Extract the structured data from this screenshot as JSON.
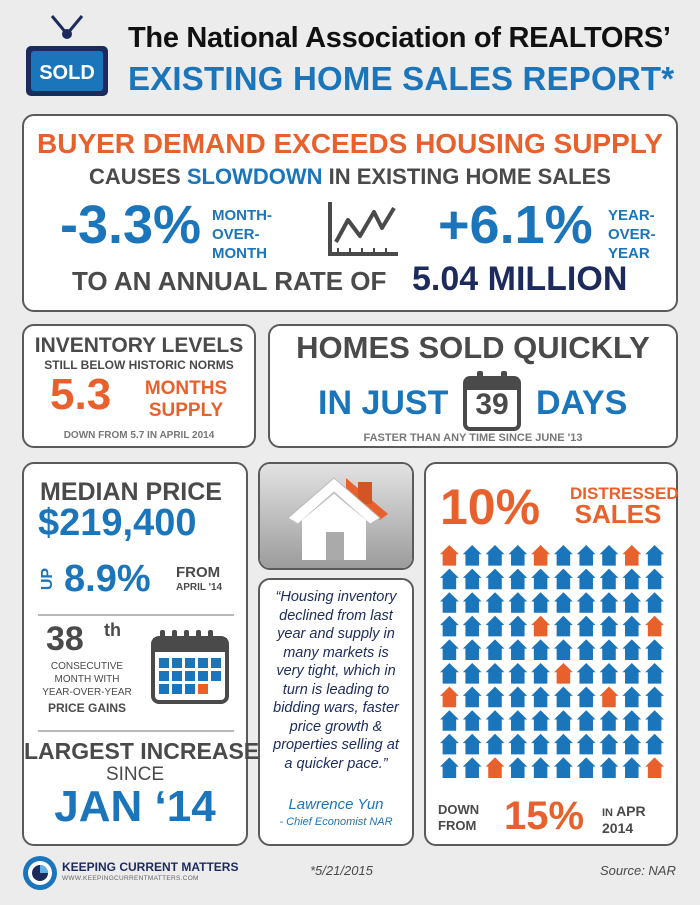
{
  "header": {
    "sign_text": "SOLD",
    "line1": "The National Association of REALTORS’",
    "line2": "EXISTING HOME SALES REPORT*"
  },
  "demand": {
    "title": "BUYER DEMAND EXCEEDS HOUSING SUPPLY",
    "sub_a": "CAUSES ",
    "sub_b": "SLOWDOWN",
    "sub_c": " IN EXISTING HOME SALES",
    "mom_value": "-3.3%",
    "mom_label1": "MONTH-",
    "mom_label2": "OVER-",
    "mom_label3": "MONTH",
    "yoy_value": "+6.1%",
    "yoy_label1": "YEAR-",
    "yoy_label2": "OVER-",
    "yoy_label3": "YEAR",
    "rate_text": "TO AN ANNUAL RATE OF",
    "rate_value": "5.04 MILLION",
    "chart_icon": "line-chart-icon"
  },
  "inventory": {
    "title": "INVENTORY LEVELS",
    "subtitle": "STILL BELOW HISTORIC NORMS",
    "value": "5.3",
    "label1": "MONTHS",
    "label2": "SUPPLY",
    "down": "DOWN FROM 5.7 IN APRIL 2014"
  },
  "sold_quickly": {
    "title": "HOMES SOLD QUICKLY",
    "in_just": "IN JUST",
    "days_value": "39",
    "days": "DAYS",
    "faster": "FASTER THAN ANY TIME SINCE JUNE '13",
    "calendar_icon": "calendar-icon"
  },
  "median": {
    "title": "MEDIAN PRICE",
    "price": "$219,400",
    "up": "UP",
    "pct": "8.9%",
    "from": "FROM",
    "from_date": "APRIL '14",
    "consec_num": "38",
    "consec_suffix": "th",
    "consec_l1": "CONSECUTIVE",
    "consec_l2": "MONTH WITH",
    "consec_l3": "YEAR-OVER-YEAR",
    "gains": "PRICE GAINS",
    "largest": "LARGEST INCREASE",
    "since": "SINCE",
    "since_date": "JAN ‘14",
    "calendar_icon": "calendar-grid-icon"
  },
  "house_image": {
    "icon": "house-icon"
  },
  "quote": {
    "text": "“Housing inventory declined from last year and supply in many markets is very tight, which in turn is leading to bidding wars, faster price growth & properties selling at a quicker pace.”",
    "name": "Lawrence Yun",
    "role": "- Chief Economist NAR"
  },
  "distressed": {
    "value": "10%",
    "label1": "DISTRESSED",
    "label2": "SALES",
    "down1": "DOWN",
    "down2": "FROM",
    "down_value": "15%",
    "in_label": "IN",
    "month": "APR",
    "year": "2014",
    "grid_rows": 10,
    "grid_cols": 10,
    "highlight_count": 10,
    "colors": {
      "highlight": "#e8612c",
      "normal": "#1b75bb"
    }
  },
  "footer": {
    "brand": "KEEPING CURRENT MATTERS",
    "url": "WWW.KEEPINGCURRENTMATTERS.COM",
    "footnote": "*5/21/2015",
    "source": "Source: NAR"
  },
  "colors": {
    "blue": "#1b75bb",
    "orange": "#e8612c",
    "navy": "#1d2b5c",
    "grey": "#4a4a4a"
  }
}
